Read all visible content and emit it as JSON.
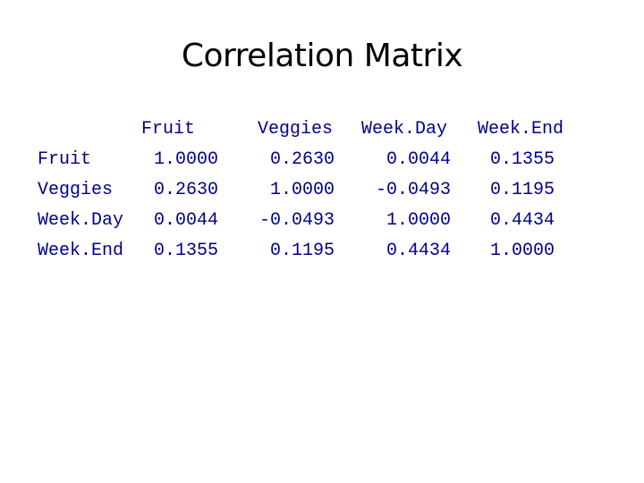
{
  "title": "Correlation Matrix",
  "matrix": {
    "columns": [
      "Fruit",
      "Veggies",
      "Week.Day",
      "Week.End"
    ],
    "rows": [
      {
        "label": "Fruit",
        "values": [
          "1.0000",
          "0.2630",
          "0.0044",
          "0.1355"
        ]
      },
      {
        "label": "Veggies",
        "values": [
          "0.2630",
          "1.0000",
          "-0.0493",
          "0.1195"
        ]
      },
      {
        "label": "Week.Day",
        "values": [
          "0.0044",
          "-0.0493",
          "1.0000",
          "0.4434"
        ]
      },
      {
        "label": "Week.End",
        "values": [
          "0.1355",
          "0.1195",
          "0.4434",
          "1.0000"
        ]
      }
    ]
  },
  "colors": {
    "text": "#00008B",
    "title": "#000000"
  }
}
